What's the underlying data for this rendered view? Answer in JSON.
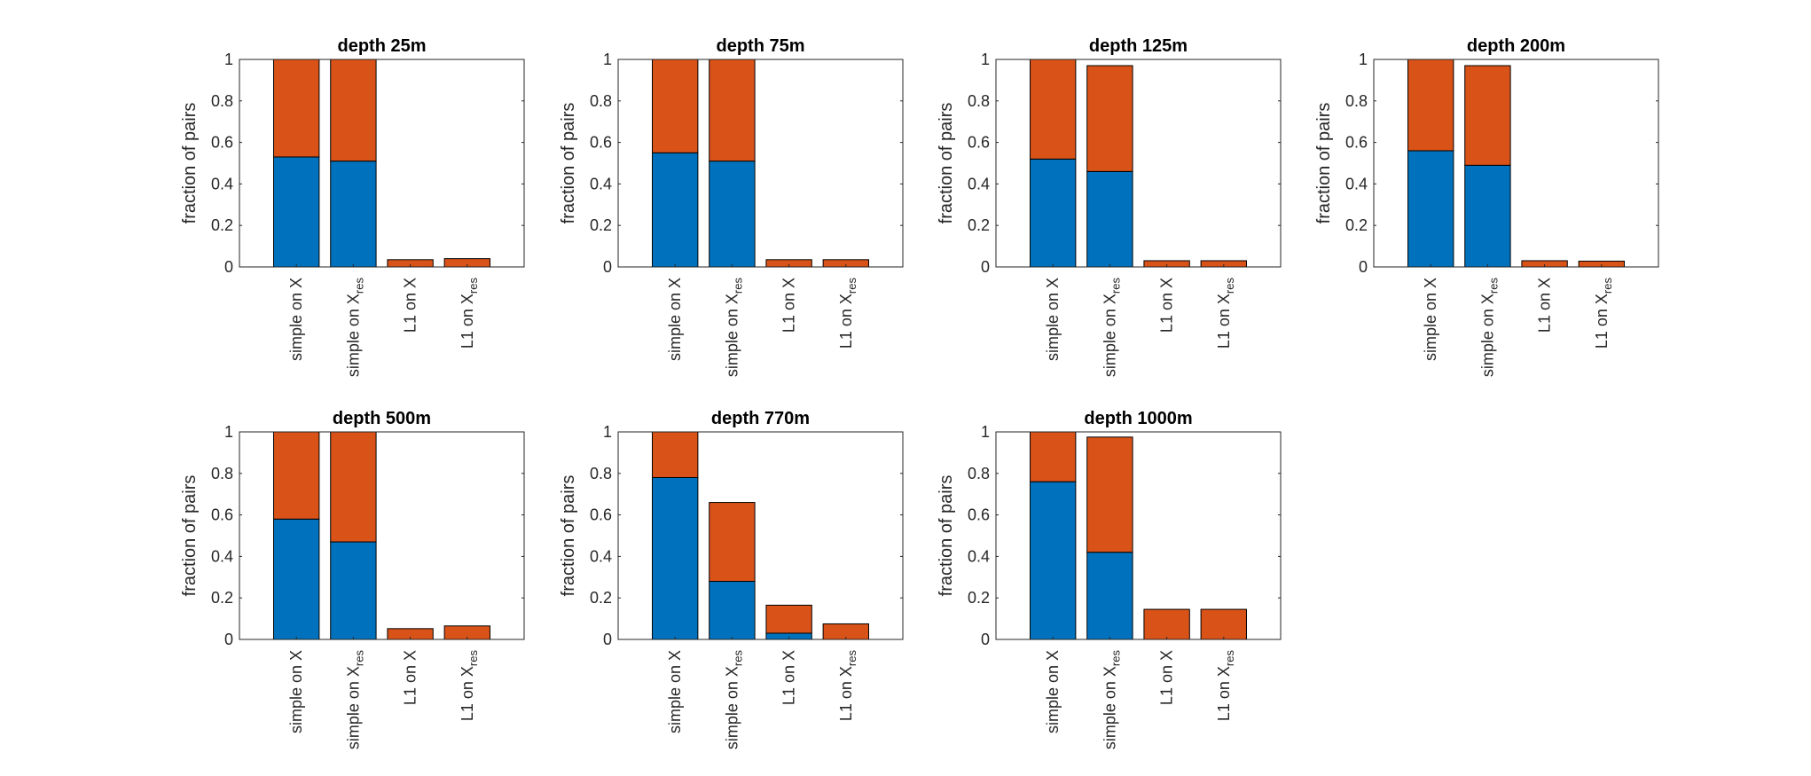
{
  "chart_data": [
    {
      "type": "bar",
      "stacked": true,
      "title": "depth 25m",
      "ylabel": "fraction of pairs",
      "ylim": [
        0,
        1
      ],
      "yticks": [
        "0",
        "0.2",
        "0.4",
        "0.6",
        "0.8",
        "1"
      ],
      "categories": [
        {
          "main": "simple on X",
          "sub": ""
        },
        {
          "main": "simple on X",
          "sub": "res"
        },
        {
          "main": "L1 on X",
          "sub": ""
        },
        {
          "main": "L1 on X",
          "sub": "res"
        }
      ],
      "series": [
        {
          "color": "#0072BD",
          "values": [
            0.53,
            0.51,
            0.0,
            0.0
          ]
        },
        {
          "color": "#D95319",
          "values": [
            0.47,
            0.49,
            0.035,
            0.04
          ]
        }
      ]
    },
    {
      "type": "bar",
      "stacked": true,
      "title": "depth 75m",
      "ylabel": "fraction of pairs",
      "ylim": [
        0,
        1
      ],
      "yticks": [
        "0",
        "0.2",
        "0.4",
        "0.6",
        "0.8",
        "1"
      ],
      "categories": [
        {
          "main": "simple on X",
          "sub": ""
        },
        {
          "main": "simple on X",
          "sub": "res"
        },
        {
          "main": "L1 on X",
          "sub": ""
        },
        {
          "main": "L1 on X",
          "sub": "res"
        }
      ],
      "series": [
        {
          "color": "#0072BD",
          "values": [
            0.55,
            0.51,
            0.0,
            0.0
          ]
        },
        {
          "color": "#D95319",
          "values": [
            0.45,
            0.49,
            0.035,
            0.035
          ]
        }
      ]
    },
    {
      "type": "bar",
      "stacked": true,
      "title": "depth 125m",
      "ylabel": "fraction of pairs",
      "ylim": [
        0,
        1
      ],
      "yticks": [
        "0",
        "0.2",
        "0.4",
        "0.6",
        "0.8",
        "1"
      ],
      "categories": [
        {
          "main": "simple on X",
          "sub": ""
        },
        {
          "main": "simple on X",
          "sub": "res"
        },
        {
          "main": "L1 on X",
          "sub": ""
        },
        {
          "main": "L1 on X",
          "sub": "res"
        }
      ],
      "series": [
        {
          "color": "#0072BD",
          "values": [
            0.52,
            0.46,
            0.0,
            0.0
          ]
        },
        {
          "color": "#D95319",
          "values": [
            0.48,
            0.51,
            0.03,
            0.03
          ]
        }
      ]
    },
    {
      "type": "bar",
      "stacked": true,
      "title": "depth 200m",
      "ylabel": "fraction of pairs",
      "ylim": [
        0,
        1
      ],
      "yticks": [
        "0",
        "0.2",
        "0.4",
        "0.6",
        "0.8",
        "1"
      ],
      "categories": [
        {
          "main": "simple on X",
          "sub": ""
        },
        {
          "main": "simple on X",
          "sub": "res"
        },
        {
          "main": "L1 on X",
          "sub": ""
        },
        {
          "main": "L1 on X",
          "sub": "res"
        }
      ],
      "series": [
        {
          "color": "#0072BD",
          "values": [
            0.56,
            0.49,
            0.0,
            0.0
          ]
        },
        {
          "color": "#D95319",
          "values": [
            0.44,
            0.48,
            0.03,
            0.028
          ]
        }
      ]
    },
    {
      "type": "bar",
      "stacked": true,
      "title": "depth 500m",
      "ylabel": "fraction of pairs",
      "ylim": [
        0,
        1
      ],
      "yticks": [
        "0",
        "0.2",
        "0.4",
        "0.6",
        "0.8",
        "1"
      ],
      "categories": [
        {
          "main": "simple on X",
          "sub": ""
        },
        {
          "main": "simple on X",
          "sub": "res"
        },
        {
          "main": "L1 on X",
          "sub": ""
        },
        {
          "main": "L1 on X",
          "sub": "res"
        }
      ],
      "series": [
        {
          "color": "#0072BD",
          "values": [
            0.58,
            0.47,
            0.0,
            0.0
          ]
        },
        {
          "color": "#D95319",
          "values": [
            0.42,
            0.53,
            0.052,
            0.065
          ]
        }
      ]
    },
    {
      "type": "bar",
      "stacked": true,
      "title": "depth 770m",
      "ylabel": "fraction of pairs",
      "ylim": [
        0,
        1
      ],
      "yticks": [
        "0",
        "0.2",
        "0.4",
        "0.6",
        "0.8",
        "1"
      ],
      "categories": [
        {
          "main": "simple on X",
          "sub": ""
        },
        {
          "main": "simple on X",
          "sub": "res"
        },
        {
          "main": "L1 on X",
          "sub": ""
        },
        {
          "main": "L1 on X",
          "sub": "res"
        }
      ],
      "series": [
        {
          "color": "#0072BD",
          "values": [
            0.78,
            0.28,
            0.03,
            0.0
          ]
        },
        {
          "color": "#D95319",
          "values": [
            0.22,
            0.38,
            0.135,
            0.075
          ]
        }
      ]
    },
    {
      "type": "bar",
      "stacked": true,
      "title": "depth 1000m",
      "ylabel": "fraction of pairs",
      "ylim": [
        0,
        1
      ],
      "yticks": [
        "0",
        "0.2",
        "0.4",
        "0.6",
        "0.8",
        "1"
      ],
      "categories": [
        {
          "main": "simple on X",
          "sub": ""
        },
        {
          "main": "simple on X",
          "sub": "res"
        },
        {
          "main": "L1 on X",
          "sub": ""
        },
        {
          "main": "L1 on X",
          "sub": "res"
        }
      ],
      "series": [
        {
          "color": "#0072BD",
          "values": [
            0.76,
            0.42,
            0.0,
            0.0
          ]
        },
        {
          "color": "#D95319",
          "values": [
            0.24,
            0.555,
            0.145,
            0.145
          ]
        }
      ]
    }
  ]
}
